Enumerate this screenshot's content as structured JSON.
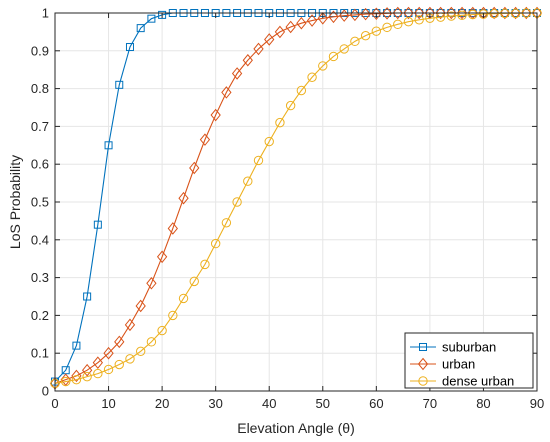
{
  "chart_data": {
    "type": "line",
    "xlabel": "Elevation Angle (θ)",
    "ylabel": "LoS Probability",
    "xlim": [
      0,
      90
    ],
    "ylim": [
      0,
      1
    ],
    "x_ticks": [
      "0",
      "10",
      "20",
      "30",
      "40",
      "50",
      "60",
      "70",
      "80",
      "90"
    ],
    "y_ticks": [
      "0",
      "0.1",
      "0.2",
      "0.3",
      "0.4",
      "0.5",
      "0.6",
      "0.7",
      "0.8",
      "0.9",
      "1"
    ],
    "grid": true,
    "legend_position": "bottom-right",
    "x": [
      0,
      2,
      4,
      6,
      8,
      10,
      12,
      14,
      16,
      18,
      20,
      22,
      24,
      26,
      28,
      30,
      32,
      34,
      36,
      38,
      40,
      42,
      44,
      46,
      48,
      50,
      52,
      54,
      56,
      58,
      60,
      62,
      64,
      66,
      68,
      70,
      72,
      74,
      76,
      78,
      80,
      82,
      84,
      86,
      88,
      90
    ],
    "series": [
      {
        "name": "suburban",
        "color": "#0072BD",
        "marker": "square",
        "values": [
          0.025,
          0.055,
          0.12,
          0.25,
          0.44,
          0.65,
          0.81,
          0.91,
          0.96,
          0.985,
          0.995,
          1,
          1,
          1,
          1,
          1,
          1,
          1,
          1,
          1,
          1,
          1,
          1,
          1,
          1,
          1,
          1,
          1,
          1,
          1,
          1,
          1,
          1,
          1,
          1,
          1,
          1,
          1,
          1,
          1,
          1,
          1,
          1,
          1,
          1,
          1
        ]
      },
      {
        "name": "urban",
        "color": "#D95319",
        "marker": "diamond",
        "values": [
          0.02,
          0.03,
          0.04,
          0.055,
          0.075,
          0.1,
          0.13,
          0.175,
          0.225,
          0.285,
          0.355,
          0.43,
          0.51,
          0.59,
          0.665,
          0.73,
          0.79,
          0.84,
          0.875,
          0.905,
          0.93,
          0.95,
          0.963,
          0.973,
          0.98,
          0.986,
          0.99,
          0.993,
          0.995,
          0.997,
          0.998,
          0.999,
          1,
          1,
          1,
          1,
          1,
          1,
          1,
          1,
          1,
          1,
          1,
          1,
          1,
          1
        ]
      },
      {
        "name": "dense urban",
        "color": "#EDB120",
        "marker": "circle",
        "values": [
          0.02,
          0.025,
          0.03,
          0.038,
          0.046,
          0.057,
          0.07,
          0.085,
          0.105,
          0.13,
          0.16,
          0.2,
          0.245,
          0.29,
          0.335,
          0.39,
          0.445,
          0.5,
          0.555,
          0.61,
          0.66,
          0.71,
          0.755,
          0.795,
          0.83,
          0.86,
          0.885,
          0.905,
          0.925,
          0.94,
          0.952,
          0.962,
          0.97,
          0.977,
          0.982,
          0.986,
          0.989,
          0.992,
          0.994,
          0.996,
          0.997,
          0.998,
          0.999,
          0.999,
          1,
          1
        ]
      }
    ]
  }
}
